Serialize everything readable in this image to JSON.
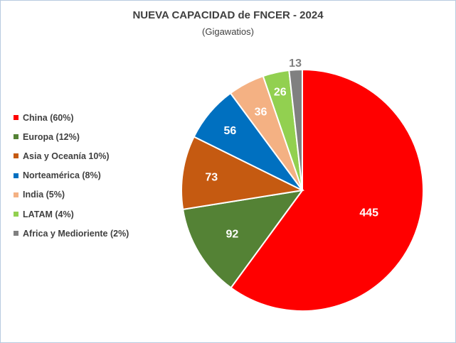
{
  "chart_data": {
    "type": "pie",
    "title": "NUEVA CAPACIDAD de FNCER - 2024",
    "subtitle": "(Gigawatios)",
    "legend_position": "left",
    "slices": [
      {
        "label": "China (60%)",
        "value": 445,
        "value_label": "445",
        "color": "#ff0000",
        "label_color": "#ffffff"
      },
      {
        "label": "Europa (12%)",
        "value": 92,
        "value_label": "92",
        "color": "#548235",
        "label_color": "#ffffff"
      },
      {
        "label": "Asia y Oceanía 10%)",
        "value": 73,
        "value_label": "73",
        "color": "#c55a11",
        "label_color": "#ffffff"
      },
      {
        "label": "Norteamérica (8%)",
        "value": 56,
        "value_label": "56",
        "color": "#0070c0",
        "label_color": "#ffffff"
      },
      {
        "label": "India (5%)",
        "value": 36,
        "value_label": "36",
        "color": "#f4b183",
        "label_color": "#ffffff"
      },
      {
        "label": "LATAM (4%)",
        "value": 26,
        "value_label": "26",
        "color": "#92d050",
        "label_color": "#ffffff"
      },
      {
        "label": "Africa y Medioriente (2%)",
        "value": 13,
        "value_label": "13",
        "color": "#808080",
        "label_color": "#808080"
      }
    ]
  }
}
